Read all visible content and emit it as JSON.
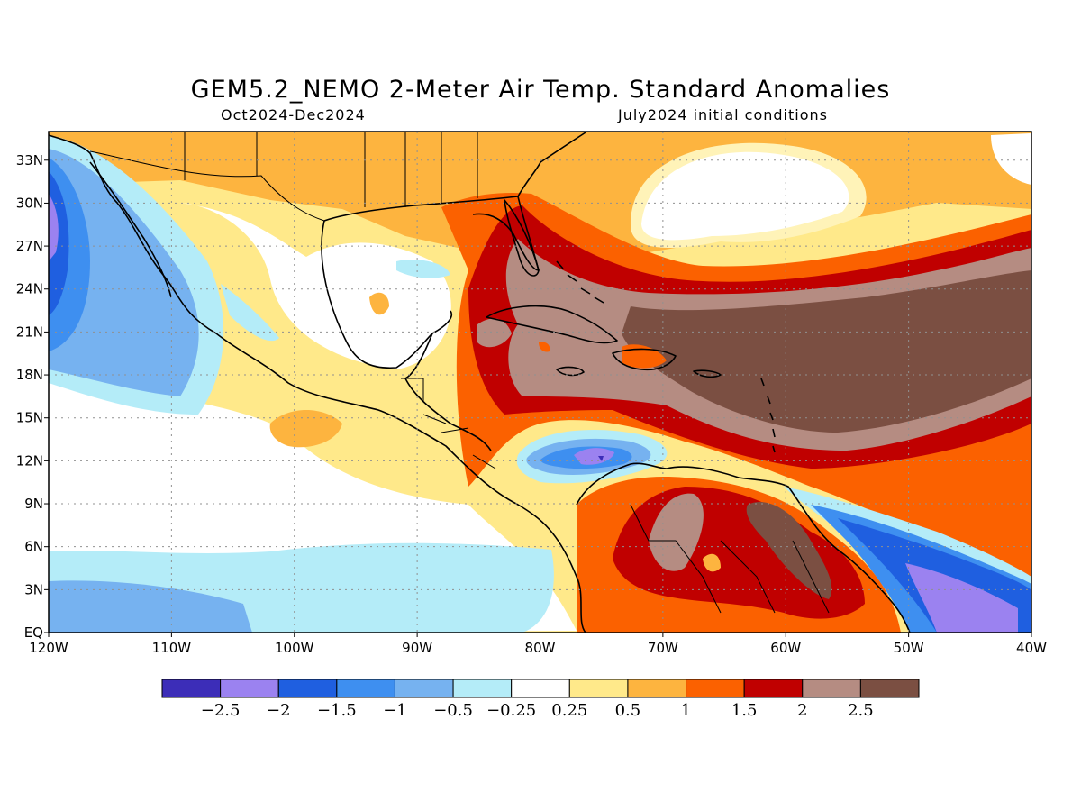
{
  "title": "GEM5.2_NEMO 2-Meter Air Temp. Standard Anomalies",
  "subtitle_left": "Oct2024-Dec2024",
  "subtitle_right": "July2024 initial conditions",
  "chart_data": {
    "type": "heatmap",
    "quantity": "2-Meter Air Temp. Standard Anomalies",
    "lon_range": [
      -120,
      -40
    ],
    "lat_range": [
      0,
      35
    ],
    "x_ticks": [
      "120W",
      "110W",
      "100W",
      "90W",
      "80W",
      "70W",
      "60W",
      "50W",
      "40W"
    ],
    "y_ticks": [
      "EQ",
      "3N",
      "6N",
      "9N",
      "12N",
      "15N",
      "18N",
      "21N",
      "24N",
      "27N",
      "30N",
      "33N"
    ],
    "grid": true,
    "colorbar": {
      "labels": [
        "-2.5",
        "-2",
        "-1.5",
        "-1",
        "-0.5",
        "-0.25",
        "0.25",
        "0.5",
        "1",
        "1.5",
        "2",
        "2.5"
      ],
      "colors": [
        "#3c2db8",
        "#9b82f0",
        "#1f5fe0",
        "#3e8ff0",
        "#76b2f0",
        "#b4ecf8",
        "#ffffff",
        "#ffe98a",
        "#fdb43f",
        "#fb6100",
        "#c00000",
        "#b58c82",
        "#7b4f42"
      ]
    }
  }
}
